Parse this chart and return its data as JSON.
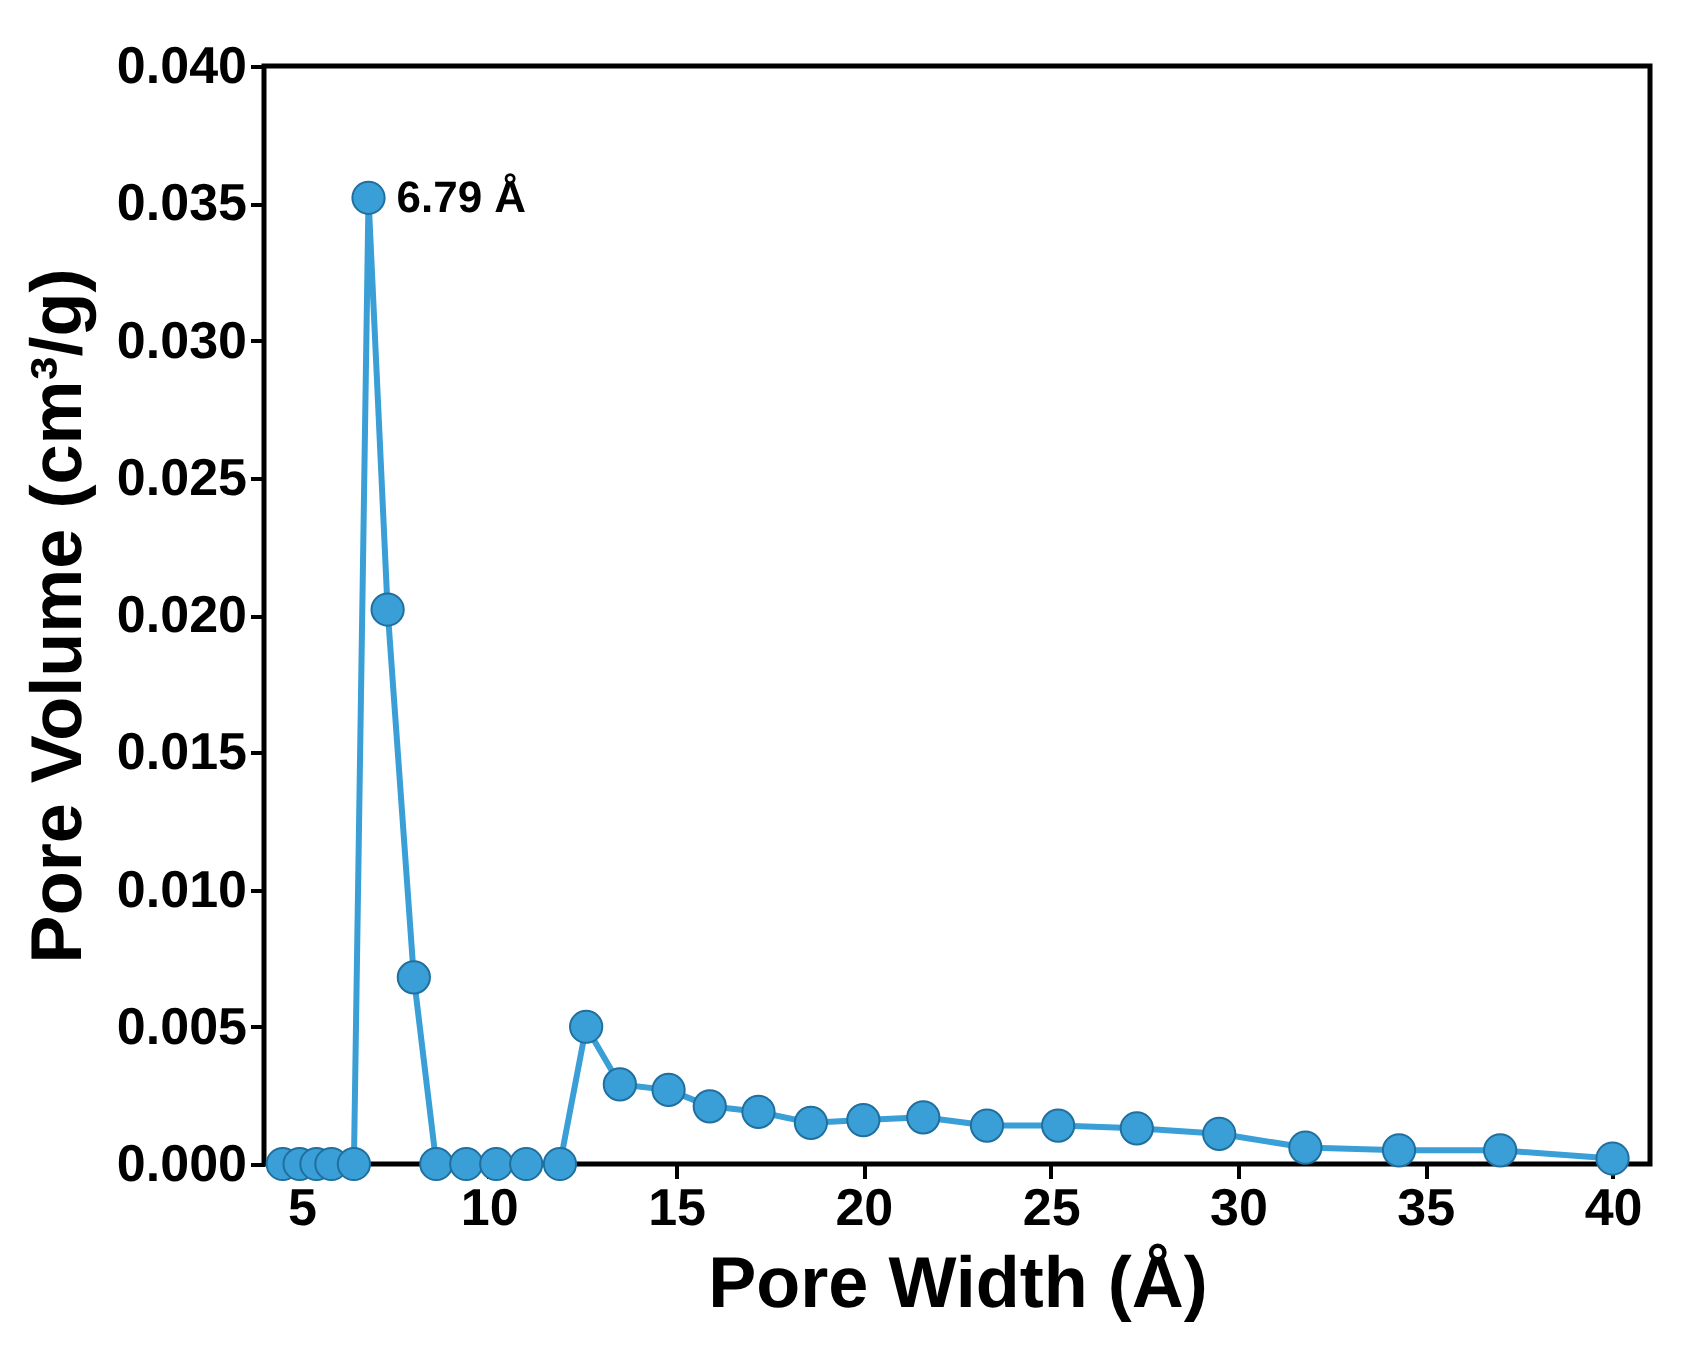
{
  "chart_data": {
    "type": "line",
    "xlabel": "Pore Width (Å)",
    "ylabel": "Pore Volume (cm³/g)",
    "x": [
      4.5,
      4.95,
      5.4,
      5.8,
      6.4,
      6.79,
      7.3,
      8.0,
      8.6,
      9.4,
      10.2,
      11.0,
      11.9,
      12.6,
      13.5,
      14.8,
      15.9,
      17.2,
      18.6,
      20.0,
      21.6,
      23.3,
      25.2,
      27.3,
      29.5,
      31.8,
      34.3,
      37.0,
      40.0
    ],
    "series": [
      {
        "color": "#3a9fd6",
        "values": [
          0,
          0,
          0,
          0,
          0,
          0.0352,
          0.0202,
          0.0068,
          0,
          0,
          0,
          0,
          0,
          0.005,
          0.0029,
          0.0027,
          0.0021,
          0.0019,
          0.0015,
          0.0016,
          0.0017,
          0.0014,
          0.0014,
          0.0013,
          0.0011,
          0.0006,
          0.0005,
          0.0005,
          0.0002
        ]
      }
    ],
    "xlim": [
      4,
      41
    ],
    "xticks": [
      5,
      10,
      15,
      20,
      25,
      30,
      35,
      40
    ],
    "ylim": [
      0,
      0.04
    ],
    "yticks": [
      {
        "value": 0,
        "label": "0.000"
      },
      {
        "value": 0.005,
        "label": "0.005"
      },
      {
        "value": 0.01,
        "label": "0.010"
      },
      {
        "value": 0.015,
        "label": "0.015"
      },
      {
        "value": 0.02,
        "label": "0.020"
      },
      {
        "value": 0.025,
        "label": "0.025"
      },
      {
        "value": 0.03,
        "label": "0.030"
      },
      {
        "value": 0.035,
        "label": "0.035"
      },
      {
        "value": 0.04,
        "label": "0.040"
      }
    ],
    "annotations": [
      {
        "text": "6.79 Å",
        "x": 6.79,
        "y": 0.0352
      }
    ],
    "marker": "circle",
    "line_style": "solid",
    "grid": false
  }
}
